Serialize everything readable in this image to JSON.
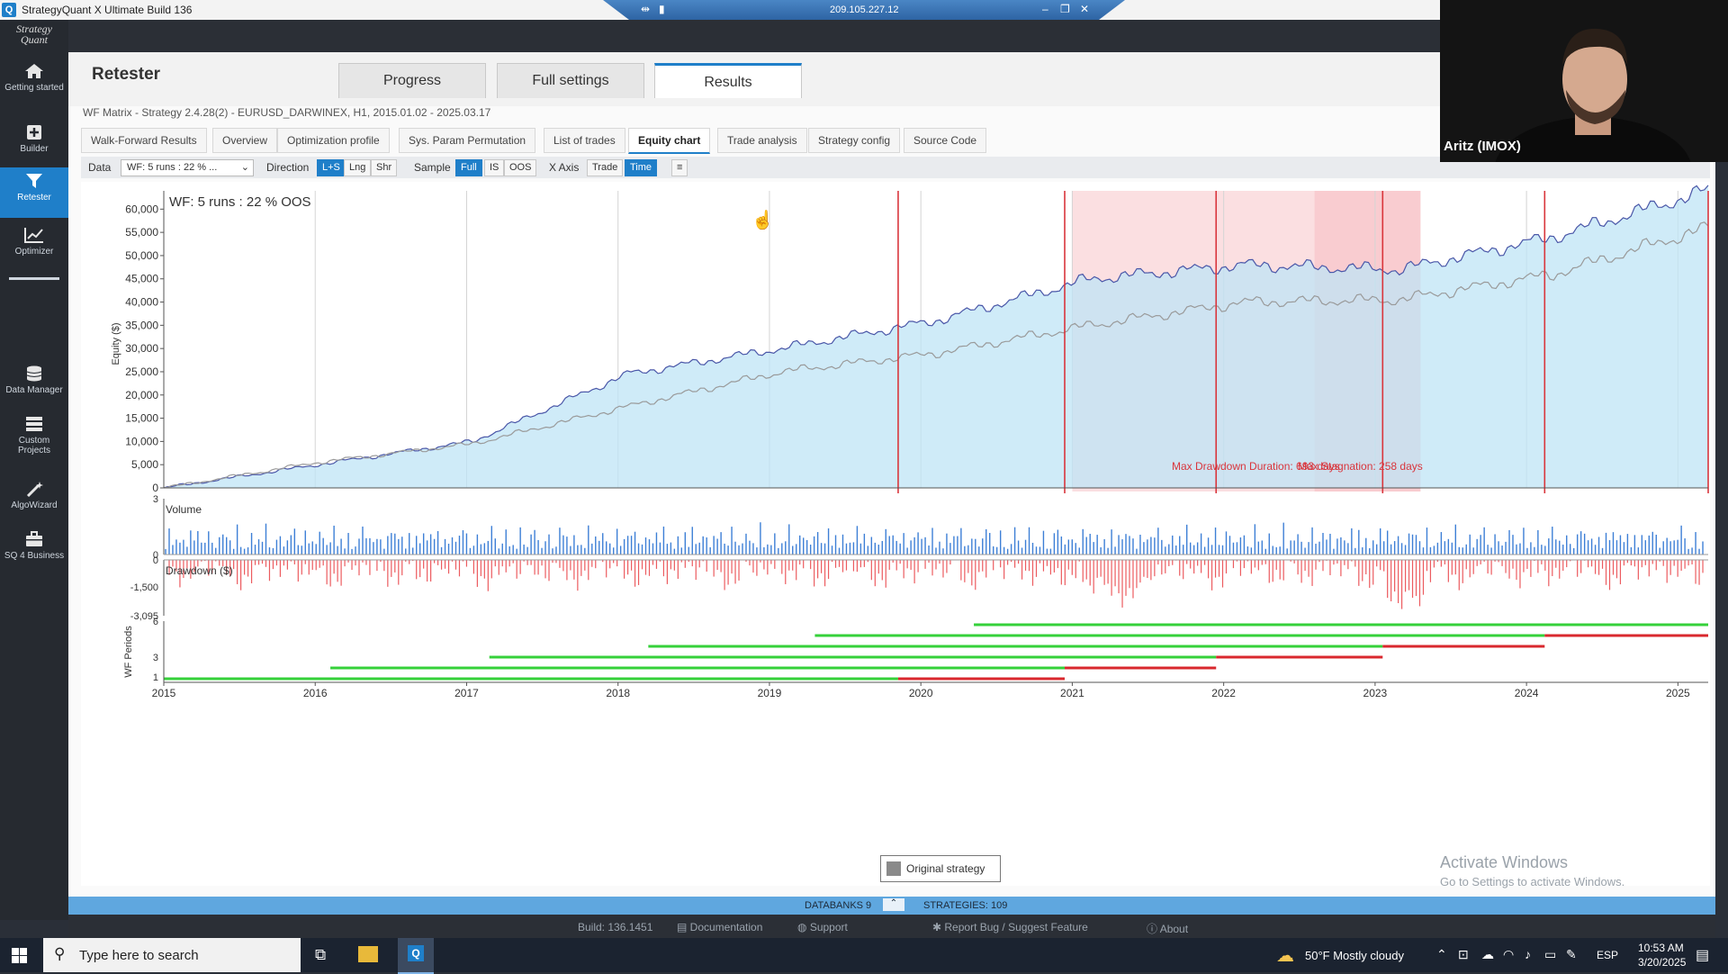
{
  "window": {
    "title": "StrategyQuant X Ultimate Build 136",
    "logo": "Q"
  },
  "rdp": {
    "ip": "209.105.227.12"
  },
  "sidebar": {
    "logo": "Strategy Quant",
    "items": [
      {
        "label": "Getting started",
        "icon": "home-icon"
      },
      {
        "label": "Builder",
        "icon": "plus-box-icon"
      },
      {
        "label": "Retester",
        "icon": "filter-icon"
      },
      {
        "label": "Optimizer",
        "icon": "chart-icon"
      },
      {
        "label": "Data Manager",
        "icon": "database-icon"
      },
      {
        "label": "Custom Projects",
        "icon": "list-icon"
      },
      {
        "label": "AlgoWizard",
        "icon": "wand-icon"
      },
      {
        "label": "SQ 4 Business",
        "icon": "briefcase-icon"
      }
    ]
  },
  "main": {
    "title": "Retester",
    "tabs": [
      "Progress",
      "Full settings",
      "Results"
    ],
    "subtitle": "WF Matrix - Strategy 2.4.28(2) - EURUSD_DARWINEX, H1, 2015.01.02 - 2025.03.17",
    "subtabs": [
      "Walk-Forward Results",
      "Overview",
      "Optimization profile",
      "Sys. Param Permutation",
      "List of trades",
      "Equity chart",
      "Trade analysis",
      "Strategy config",
      "Source Code"
    ],
    "active_subtab": "Equity chart"
  },
  "toolbar": {
    "data_label": "Data",
    "data_value": "WF: 5 runs : 22 % ...",
    "direction_label": "Direction",
    "direction": [
      "L+S",
      "Lng",
      "Shr"
    ],
    "sample_label": "Sample",
    "sample": [
      "Full",
      "IS",
      "OOS"
    ],
    "xaxis_label": "X Axis",
    "xaxis": [
      "Trade",
      "Time"
    ],
    "menu_icon": "menu-icon"
  },
  "chart_data": {
    "type": "area",
    "title": "WF: 5 runs : 22 % OOS",
    "ylabel": "Equity ($)",
    "xlabel": "",
    "x": [
      "2015",
      "2016",
      "2017",
      "2018",
      "2019",
      "2020",
      "2021",
      "2022",
      "2023",
      "2024",
      "2025"
    ],
    "ylim": [
      0,
      62000
    ],
    "yticks": [
      "60,000",
      "55,000",
      "50,000",
      "45,000",
      "40,000",
      "35,000",
      "30,000",
      "25,000",
      "20,000",
      "15,000",
      "10,000",
      "5,000",
      "0"
    ],
    "series": [
      {
        "values": [
          0,
          5000,
          10000,
          24500,
          30000,
          36000,
          45000,
          48000,
          47000,
          54000,
          64000
        ],
        "color": "#4a57a8"
      },
      {
        "values": [
          0,
          5500,
          9500,
          17500,
          25000,
          29000,
          35000,
          40000,
          40500,
          46000,
          56000
        ],
        "color": "#9a9a9a"
      }
    ],
    "wf_boundaries": [
      2019.85,
      2020.95,
      2021.95,
      2023.05,
      2024.12,
      2025.2
    ],
    "highlight_ranges": [
      [
        2021.0,
        2023.3
      ],
      [
        2022.6,
        2023.3
      ]
    ],
    "annotations": [
      "Max Drawdown Duration: 693 days",
      "Max Stagnation: 258 days"
    ],
    "volume_panel": {
      "label": "Volume",
      "ylim": [
        0,
        3
      ],
      "yticks": [
        "3",
        "0"
      ]
    },
    "drawdown_panel": {
      "label": "Drawdown ($)",
      "ylim": [
        -3095,
        0
      ],
      "yticks": [
        "0",
        "-1,500",
        "-3,095"
      ]
    },
    "wf_periods_panel": {
      "label": "WF Periods",
      "yticks": [
        "6",
        "3",
        "1"
      ],
      "periods": [
        {
          "is": [
            2015.0,
            2019.85
          ],
          "oos": [
            2019.85,
            2020.95
          ]
        },
        {
          "is": [
            2016.1,
            2020.95
          ],
          "oos": [
            2020.95,
            2021.95
          ]
        },
        {
          "is": [
            2017.15,
            2021.95
          ],
          "oos": [
            2021.95,
            2023.05
          ]
        },
        {
          "is": [
            2018.2,
            2023.05
          ],
          "oos": [
            2023.05,
            2024.12
          ]
        },
        {
          "is": [
            2019.3,
            2024.12
          ],
          "oos": [
            2024.12,
            2025.2
          ]
        },
        {
          "is": [
            2020.35,
            2025.2
          ],
          "oos": null
        }
      ]
    },
    "legend": [
      "Original strategy"
    ],
    "legend_position": "bottom-center"
  },
  "status": {
    "databanks": "DATABANKS 9",
    "strategies": "STRATEGIES: 109"
  },
  "footer": {
    "build": "Build: 136.1451",
    "documentation": "Documentation",
    "support": "Support",
    "report": "Report Bug / Suggest Feature",
    "about": "About"
  },
  "webcam": {
    "name": "Aritz (IMOX)"
  },
  "activate": {
    "line1": "Activate Windows",
    "line2": "Go to Settings to activate Windows."
  },
  "taskbar": {
    "search_placeholder": "Type here to search",
    "weather": "50°F  Mostly cloudy",
    "lang": "ESP",
    "time": "10:53 AM",
    "date": "3/20/2025"
  }
}
